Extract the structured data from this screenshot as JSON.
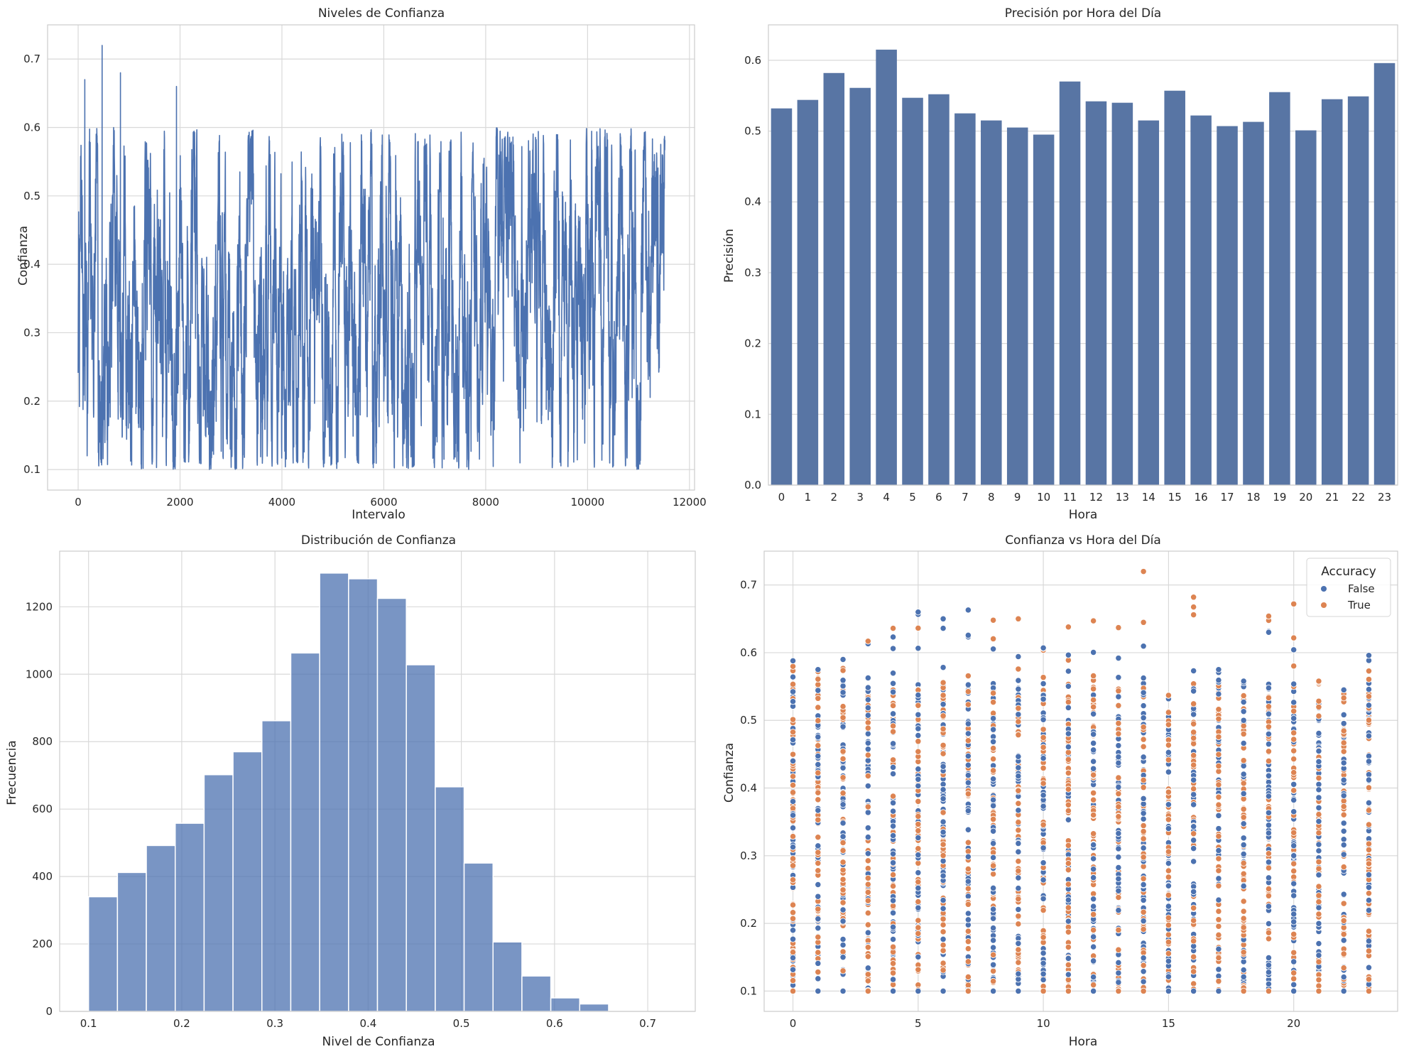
{
  "chart_data": [
    {
      "type": "line",
      "title": "Niveles de Confianza",
      "xlabel": "Intervalo",
      "ylabel": "Confianza",
      "xlim": [
        -600,
        12100
      ],
      "ylim": [
        0.07,
        0.75
      ],
      "xticks": [
        0,
        2000,
        4000,
        6000,
        8000,
        10000,
        12000
      ],
      "yticks": [
        0.1,
        0.2,
        0.3,
        0.4,
        0.5,
        0.6,
        0.7
      ],
      "n_points": 11520,
      "value_range": [
        0.1,
        0.72
      ],
      "notable_peaks": [
        {
          "x": 470,
          "y": 0.72
        },
        {
          "x": 130,
          "y": 0.67
        },
        {
          "x": 830,
          "y": 0.68
        },
        {
          "x": 1930,
          "y": 0.66
        }
      ],
      "grid": true,
      "color": "#4c72b0"
    },
    {
      "type": "bar",
      "title": "Precisión por Hora del Día",
      "xlabel": "Hora",
      "ylabel": "Precisión",
      "categories": [
        "0",
        "1",
        "2",
        "3",
        "4",
        "5",
        "6",
        "7",
        "8",
        "9",
        "10",
        "11",
        "12",
        "13",
        "14",
        "15",
        "16",
        "17",
        "18",
        "19",
        "20",
        "21",
        "22",
        "23"
      ],
      "values": [
        0.532,
        0.544,
        0.582,
        0.561,
        0.615,
        0.547,
        0.552,
        0.525,
        0.515,
        0.505,
        0.495,
        0.57,
        0.542,
        0.54,
        0.515,
        0.557,
        0.522,
        0.507,
        0.513,
        0.555,
        0.501,
        0.545,
        0.549,
        0.596
      ],
      "ylim": [
        0,
        0.65
      ],
      "yticks": [
        0.0,
        0.1,
        0.2,
        0.3,
        0.4,
        0.5,
        0.6
      ],
      "grid": true,
      "color": "#5875a4"
    },
    {
      "type": "bar",
      "title": "Distribución de Confianza",
      "xlabel": "Nivel de Confianza",
      "ylabel": "Frecuencia",
      "bin_edges": [
        0.1,
        0.131,
        0.162,
        0.193,
        0.224,
        0.255,
        0.286,
        0.317,
        0.348,
        0.379,
        0.41,
        0.441,
        0.472,
        0.503,
        0.534,
        0.565,
        0.596,
        0.627,
        0.658
      ],
      "values": [
        340,
        412,
        492,
        558,
        702,
        770,
        862,
        1063,
        1300,
        1283,
        1225,
        1028,
        666,
        440,
        206,
        105,
        40,
        22
      ],
      "xlim": [
        0.069,
        0.751
      ],
      "ylim": [
        0,
        1365
      ],
      "xticks": [
        0.1,
        0.2,
        0.3,
        0.4,
        0.5,
        0.6,
        0.7
      ],
      "yticks": [
        0,
        200,
        400,
        600,
        800,
        1000,
        1200
      ],
      "grid": true,
      "color": "#4c72b0"
    },
    {
      "type": "scatter",
      "title": "Confianza vs Hora del Día",
      "xlabel": "Hora",
      "ylabel": "Confianza",
      "xlim": [
        -1.15,
        24.15
      ],
      "ylim": [
        0.07,
        0.75
      ],
      "xticks": [
        0,
        5,
        10,
        15,
        20
      ],
      "yticks": [
        0.1,
        0.2,
        0.3,
        0.4,
        0.5,
        0.6,
        0.7
      ],
      "hours": [
        0,
        1,
        2,
        3,
        4,
        5,
        6,
        7,
        8,
        9,
        10,
        11,
        12,
        13,
        14,
        15,
        16,
        17,
        18,
        19,
        20,
        21,
        22,
        23
      ],
      "max_by_hour": [
        0.588,
        0.575,
        0.59,
        0.617,
        0.636,
        0.66,
        0.65,
        0.663,
        0.648,
        0.65,
        0.607,
        0.638,
        0.647,
        0.637,
        0.72,
        0.537,
        0.682,
        0.575,
        0.558,
        0.654,
        0.672,
        0.558,
        0.545,
        0.596
      ],
      "min_value": 0.1,
      "legend": {
        "title": "Accuracy",
        "entries": [
          "False",
          "True"
        ],
        "position": "top-right"
      },
      "series": [
        {
          "name": "False",
          "color": "#4c72b0"
        },
        {
          "name": "True",
          "color": "#dd8452"
        }
      ],
      "grid": true
    }
  ]
}
